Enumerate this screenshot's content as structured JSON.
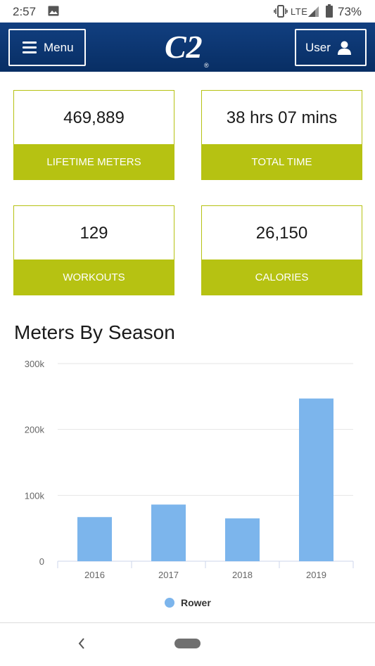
{
  "status_bar": {
    "time": "2:57",
    "network": "LTE",
    "battery": "73%",
    "icons": [
      "photo-icon",
      "vibrate-icon",
      "signal-icon",
      "battery-icon"
    ]
  },
  "header": {
    "menu_label": "Menu",
    "user_label": "User",
    "logo_text": "C2",
    "logo_mark": "®",
    "background_color": "#0d3a78"
  },
  "stats": [
    {
      "value": "469,889",
      "label": "LIFETIME METERS"
    },
    {
      "value": "38 hrs 07 mins",
      "label": "TOTAL TIME"
    },
    {
      "value": "129",
      "label": "WORKOUTS"
    },
    {
      "value": "26,150",
      "label": "CALORIES"
    }
  ],
  "accent_color": "#b6c212",
  "chart_section": {
    "title": "Meters By Season"
  },
  "chart_data": {
    "type": "bar",
    "title": "Meters By Season",
    "categories": [
      "2016",
      "2017",
      "2018",
      "2019"
    ],
    "series": [
      {
        "name": "Rower",
        "values": [
          67000,
          86000,
          65000,
          247000
        ],
        "color": "#7cb5ec"
      }
    ],
    "y_ticks": [
      "0",
      "100k",
      "200k",
      "300k"
    ],
    "ylim": [
      0,
      300000
    ],
    "grid": true,
    "legend": "bottom-center"
  },
  "nav_bar": {
    "icons": [
      "back-icon",
      "home-pill-icon"
    ]
  }
}
